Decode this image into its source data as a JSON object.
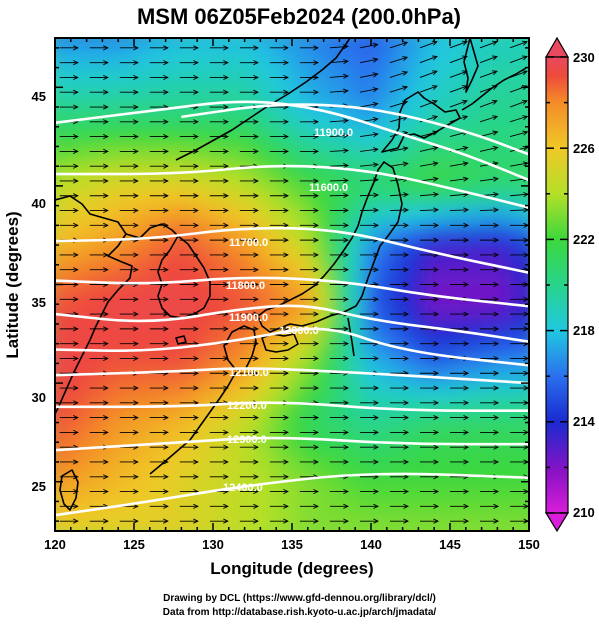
{
  "title": "MSM 06Z05Feb2024 (200.0hPa)",
  "xlabel": "Longitude (degrees)",
  "ylabel": "Latitude  (degrees)",
  "x_ticks": [
    "120",
    "125",
    "130",
    "135",
    "140",
    "145",
    "150"
  ],
  "y_ticks": [
    "25",
    "30",
    "35",
    "40",
    "45"
  ],
  "colorbar_ticks": [
    "230",
    "226",
    "222",
    "218",
    "214",
    "210"
  ],
  "contour_labels": [
    "11900.0",
    "11600.0",
    "11700.0",
    "11800.0",
    "11900.0",
    "12000.0",
    "12100.0",
    "12200.0",
    "12300.0",
    "12400.0"
  ],
  "credits": {
    "line1": "Drawing by DCL (https://www.gfd-dennou.org/library/dcl/)",
    "line2": "Data from http://database.rish.kyoto-u.ac.jp/arch/jmadata/"
  },
  "colors": {
    "colormap": [
      "#d81ed8",
      "#8a12c4",
      "#1a2ad0",
      "#2a70ee",
      "#20c8e0",
      "#28d48c",
      "#3cd83c",
      "#b4e028",
      "#f0c828",
      "#f48c28",
      "#ee4a3c",
      "#e84860"
    ],
    "contour": "#ffffff",
    "vector": "#000000",
    "coast": "#000000"
  },
  "chart_data": {
    "type": "heatmap",
    "title": "MSM 06Z05Feb2024 (200.0hPa)",
    "xlabel": "Longitude (degrees)",
    "ylabel": "Latitude  (degrees)",
    "xlim": [
      120,
      150
    ],
    "ylim": [
      22.5,
      47.5
    ],
    "colorbar_range": [
      210,
      230
    ],
    "colorbar_ticks": [
      210,
      214,
      218,
      222,
      226,
      230
    ],
    "temperature_grid": {
      "lon": [
        120,
        124,
        128,
        132,
        136,
        140,
        144,
        148,
        150
      ],
      "lat": [
        47.5,
        44,
        40,
        37,
        34,
        31,
        28,
        25,
        22.5
      ],
      "values": [
        [
          216,
          216,
          217,
          217,
          216,
          215,
          217,
          218,
          218
        ],
        [
          219,
          219,
          219,
          219,
          217,
          216,
          218,
          219,
          219
        ],
        [
          223,
          224,
          224,
          223,
          221,
          220,
          221,
          220,
          220
        ],
        [
          225,
          226,
          228,
          226,
          223,
          216,
          213,
          213,
          214
        ],
        [
          228,
          229,
          229,
          228,
          226,
          215,
          212,
          212,
          213
        ],
        [
          229,
          228,
          228,
          226,
          222,
          217,
          215,
          216,
          216
        ],
        [
          228,
          226,
          225,
          223,
          220,
          219,
          220,
          220,
          220
        ],
        [
          226,
          225,
          224,
          223,
          222,
          221,
          221,
          221,
          221
        ],
        [
          224,
          224,
          224,
          223,
          222,
          222,
          222,
          222,
          222
        ]
      ]
    },
    "height_contours": [
      {
        "level": 11600,
        "points": [
          [
            128,
            43.5
          ],
          [
            134,
            44.2
          ],
          [
            140,
            44.0
          ],
          [
            146,
            42.8
          ],
          [
            150,
            41.6
          ]
        ]
      },
      {
        "level": 11900,
        "points": [
          [
            120,
            43.2
          ],
          [
            126,
            43.8
          ],
          [
            132,
            44.4
          ],
          [
            137,
            43.9
          ],
          [
            142,
            42.6
          ],
          [
            146,
            41.6
          ],
          [
            150,
            40.3
          ]
        ]
      },
      {
        "level": 11600,
        "points": [
          [
            120,
            40.6
          ],
          [
            128,
            40.6
          ],
          [
            134,
            41.1
          ],
          [
            140,
            40.8
          ],
          [
            146,
            39.7
          ],
          [
            150,
            38.9
          ]
        ]
      },
      {
        "level": 11700,
        "points": [
          [
            120,
            37.2
          ],
          [
            126,
            37.3
          ],
          [
            132,
            37.9
          ],
          [
            138,
            37.8
          ],
          [
            144,
            36.6
          ],
          [
            150,
            35.6
          ]
        ]
      },
      {
        "level": 11800,
        "points": [
          [
            120,
            35.2
          ],
          [
            126,
            35.0
          ],
          [
            132,
            35.4
          ],
          [
            138,
            35.2
          ],
          [
            144,
            34.4
          ],
          [
            150,
            33.9
          ]
        ]
      },
      {
        "level": 11900,
        "points": [
          [
            120,
            33.5
          ],
          [
            126,
            33.0
          ],
          [
            132,
            33.8
          ],
          [
            136,
            34.0
          ],
          [
            140,
            33.2
          ],
          [
            146,
            32.6
          ],
          [
            150,
            32.1
          ]
        ]
      },
      {
        "level": 12000,
        "points": [
          [
            120,
            31.7
          ],
          [
            126,
            31.6
          ],
          [
            132,
            32.2
          ],
          [
            137,
            33.0
          ],
          [
            142,
            31.6
          ],
          [
            150,
            30.9
          ]
        ]
      },
      {
        "level": 12100,
        "points": [
          [
            120,
            30.4
          ],
          [
            128,
            30.6
          ],
          [
            132,
            30.8
          ],
          [
            140,
            30.5
          ],
          [
            150,
            30.0
          ]
        ]
      },
      {
        "level": 12200,
        "points": [
          [
            120,
            28.8
          ],
          [
            128,
            28.8
          ],
          [
            134,
            29.1
          ],
          [
            142,
            28.6
          ],
          [
            150,
            28.6
          ]
        ]
      },
      {
        "level": 12300,
        "points": [
          [
            120,
            26.6
          ],
          [
            128,
            27.0
          ],
          [
            134,
            27.3
          ],
          [
            142,
            26.9
          ],
          [
            150,
            26.9
          ]
        ]
      },
      {
        "level": 12400,
        "points": [
          [
            120,
            23.3
          ],
          [
            126,
            24.0
          ],
          [
            132,
            24.8
          ],
          [
            140,
            25.5
          ],
          [
            150,
            25.2
          ]
        ]
      }
    ],
    "wind_direction": "westerly (west to east), northeastward over northern Japan"
  }
}
